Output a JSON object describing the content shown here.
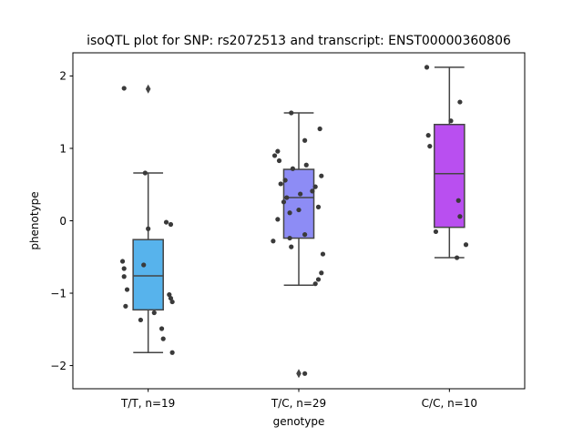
{
  "chart_data": {
    "type": "box",
    "title": "isoQTL plot for SNP: rs2072513 and transcript: ENST00000360806",
    "xlabel": "genotype",
    "ylabel": "phenotype",
    "ylim": [
      -2.32,
      2.32
    ],
    "yticks": [
      2,
      1,
      0,
      -1,
      -2
    ],
    "ytick_labels": [
      "2",
      "1",
      "0",
      "−1",
      "−2"
    ],
    "grid": false,
    "categories": [
      "T/T, n=19",
      "T/C, n=29",
      "C/C, n=10"
    ],
    "boxes": [
      {
        "label": "T/T, n=19",
        "color": "#57b3ec",
        "whisker_low": -1.82,
        "q1": -1.23,
        "median": -0.76,
        "q3": -0.26,
        "whisker_high": 0.66,
        "outliers": [
          1.82
        ]
      },
      {
        "label": "T/C, n=29",
        "color": "#8d8cf5",
        "whisker_low": -0.89,
        "q1": -0.24,
        "median": 0.32,
        "q3": 0.71,
        "whisker_high": 1.49,
        "outliers": [
          -2.11
        ]
      },
      {
        "label": "C/C, n=10",
        "color": "#b94ff0",
        "whisker_low": -0.51,
        "q1": -0.09,
        "median": 0.65,
        "q3": 1.33,
        "whisker_high": 2.12,
        "outliers": []
      }
    ],
    "points": [
      [
        {
          "dx": -0.16,
          "y": 1.83
        },
        {
          "dx": -0.02,
          "y": 0.66
        },
        {
          "dx": 0.12,
          "y": -0.02
        },
        {
          "dx": 0.15,
          "y": -0.05
        },
        {
          "dx": 0.0,
          "y": -0.11
        },
        {
          "dx": -0.17,
          "y": -0.56
        },
        {
          "dx": -0.03,
          "y": -0.61
        },
        {
          "dx": -0.16,
          "y": -0.66
        },
        {
          "dx": -0.16,
          "y": -0.77
        },
        {
          "dx": -0.14,
          "y": -0.95
        },
        {
          "dx": 0.14,
          "y": -1.02
        },
        {
          "dx": 0.15,
          "y": -1.07
        },
        {
          "dx": 0.16,
          "y": -1.12
        },
        {
          "dx": -0.15,
          "y": -1.18
        },
        {
          "dx": 0.04,
          "y": -1.27
        },
        {
          "dx": -0.05,
          "y": -1.37
        },
        {
          "dx": 0.09,
          "y": -1.49
        },
        {
          "dx": 0.1,
          "y": -1.63
        },
        {
          "dx": 0.16,
          "y": -1.82
        }
      ],
      [
        {
          "dx": -0.05,
          "y": 1.49
        },
        {
          "dx": 0.14,
          "y": 1.27
        },
        {
          "dx": 0.04,
          "y": 1.11
        },
        {
          "dx": -0.14,
          "y": 0.96
        },
        {
          "dx": -0.16,
          "y": 0.9
        },
        {
          "dx": -0.13,
          "y": 0.83
        },
        {
          "dx": 0.05,
          "y": 0.77
        },
        {
          "dx": -0.04,
          "y": 0.72
        },
        {
          "dx": 0.15,
          "y": 0.62
        },
        {
          "dx": -0.09,
          "y": 0.56
        },
        {
          "dx": -0.12,
          "y": 0.51
        },
        {
          "dx": 0.11,
          "y": 0.47
        },
        {
          "dx": 0.09,
          "y": 0.41
        },
        {
          "dx": 0.01,
          "y": 0.37
        },
        {
          "dx": -0.08,
          "y": 0.32
        },
        {
          "dx": -0.1,
          "y": 0.26
        },
        {
          "dx": 0.13,
          "y": 0.19
        },
        {
          "dx": 0.0,
          "y": 0.15
        },
        {
          "dx": -0.06,
          "y": 0.11
        },
        {
          "dx": -0.14,
          "y": 0.02
        },
        {
          "dx": 0.04,
          "y": -0.19
        },
        {
          "dx": -0.06,
          "y": -0.24
        },
        {
          "dx": -0.17,
          "y": -0.28
        },
        {
          "dx": -0.05,
          "y": -0.36
        },
        {
          "dx": 0.16,
          "y": -0.46
        },
        {
          "dx": 0.15,
          "y": -0.72
        },
        {
          "dx": 0.13,
          "y": -0.81
        },
        {
          "dx": 0.11,
          "y": -0.87
        },
        {
          "dx": 0.04,
          "y": -2.11
        }
      ],
      [
        {
          "dx": -0.15,
          "y": 2.12
        },
        {
          "dx": 0.07,
          "y": 1.64
        },
        {
          "dx": 0.01,
          "y": 1.38
        },
        {
          "dx": -0.14,
          "y": 1.18
        },
        {
          "dx": -0.13,
          "y": 1.03
        },
        {
          "dx": 0.06,
          "y": 0.28
        },
        {
          "dx": 0.07,
          "y": 0.06
        },
        {
          "dx": -0.09,
          "y": -0.15
        },
        {
          "dx": 0.11,
          "y": -0.33
        },
        {
          "dx": 0.05,
          "y": -0.51
        }
      ]
    ]
  }
}
